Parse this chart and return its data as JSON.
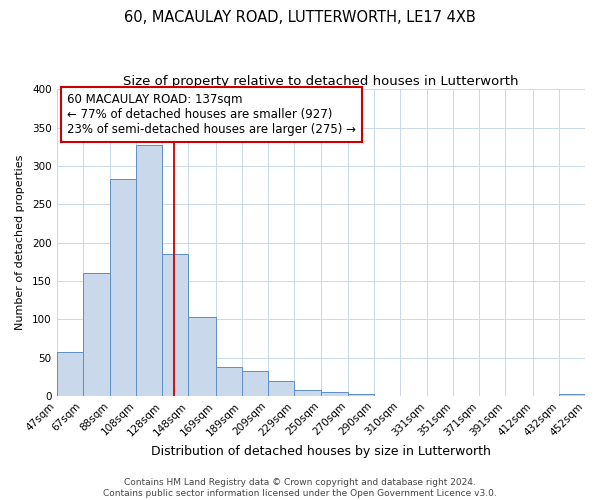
{
  "title": "60, MACAULAY ROAD, LUTTERWORTH, LE17 4XB",
  "subtitle": "Size of property relative to detached houses in Lutterworth",
  "xlabel": "Distribution of detached houses by size in Lutterworth",
  "ylabel": "Number of detached properties",
  "bar_heights": [
    57,
    160,
    283,
    327,
    185,
    103,
    37,
    32,
    19,
    7,
    5,
    3,
    0,
    0,
    0,
    0,
    0,
    0,
    0,
    3
  ],
  "bin_edges": [
    47,
    67,
    88,
    108,
    128,
    148,
    169,
    189,
    209,
    229,
    250,
    270,
    290,
    310,
    331,
    351,
    371,
    391,
    412,
    432,
    452
  ],
  "x_tick_labels": [
    "47sqm",
    "67sqm",
    "88sqm",
    "108sqm",
    "128sqm",
    "148sqm",
    "169sqm",
    "189sqm",
    "209sqm",
    "229sqm",
    "250sqm",
    "270sqm",
    "290sqm",
    "310sqm",
    "331sqm",
    "351sqm",
    "371sqm",
    "391sqm",
    "412sqm",
    "432sqm",
    "452sqm"
  ],
  "bar_color": "#c9d9eb",
  "bar_edge_color": "#5b8fc7",
  "property_line_x": 137,
  "annotation_line1": "60 MACAULAY ROAD: 137sqm",
  "annotation_line2": "← 77% of detached houses are smaller (927)",
  "annotation_line3": "23% of semi-detached houses are larger (275) →",
  "annotation_box_color": "#ffffff",
  "annotation_box_edge_color": "#cc0000",
  "ylim": [
    0,
    400
  ],
  "yticks": [
    0,
    50,
    100,
    150,
    200,
    250,
    300,
    350,
    400
  ],
  "footer_line1": "Contains HM Land Registry data © Crown copyright and database right 2024.",
  "footer_line2": "Contains public sector information licensed under the Open Government Licence v3.0.",
  "background_color": "#ffffff",
  "grid_color": "#c8d8e8",
  "title_fontsize": 10.5,
  "subtitle_fontsize": 9.5,
  "xlabel_fontsize": 9,
  "ylabel_fontsize": 8,
  "tick_fontsize": 7.5,
  "annotation_fontsize": 8.5,
  "footer_fontsize": 6.5
}
